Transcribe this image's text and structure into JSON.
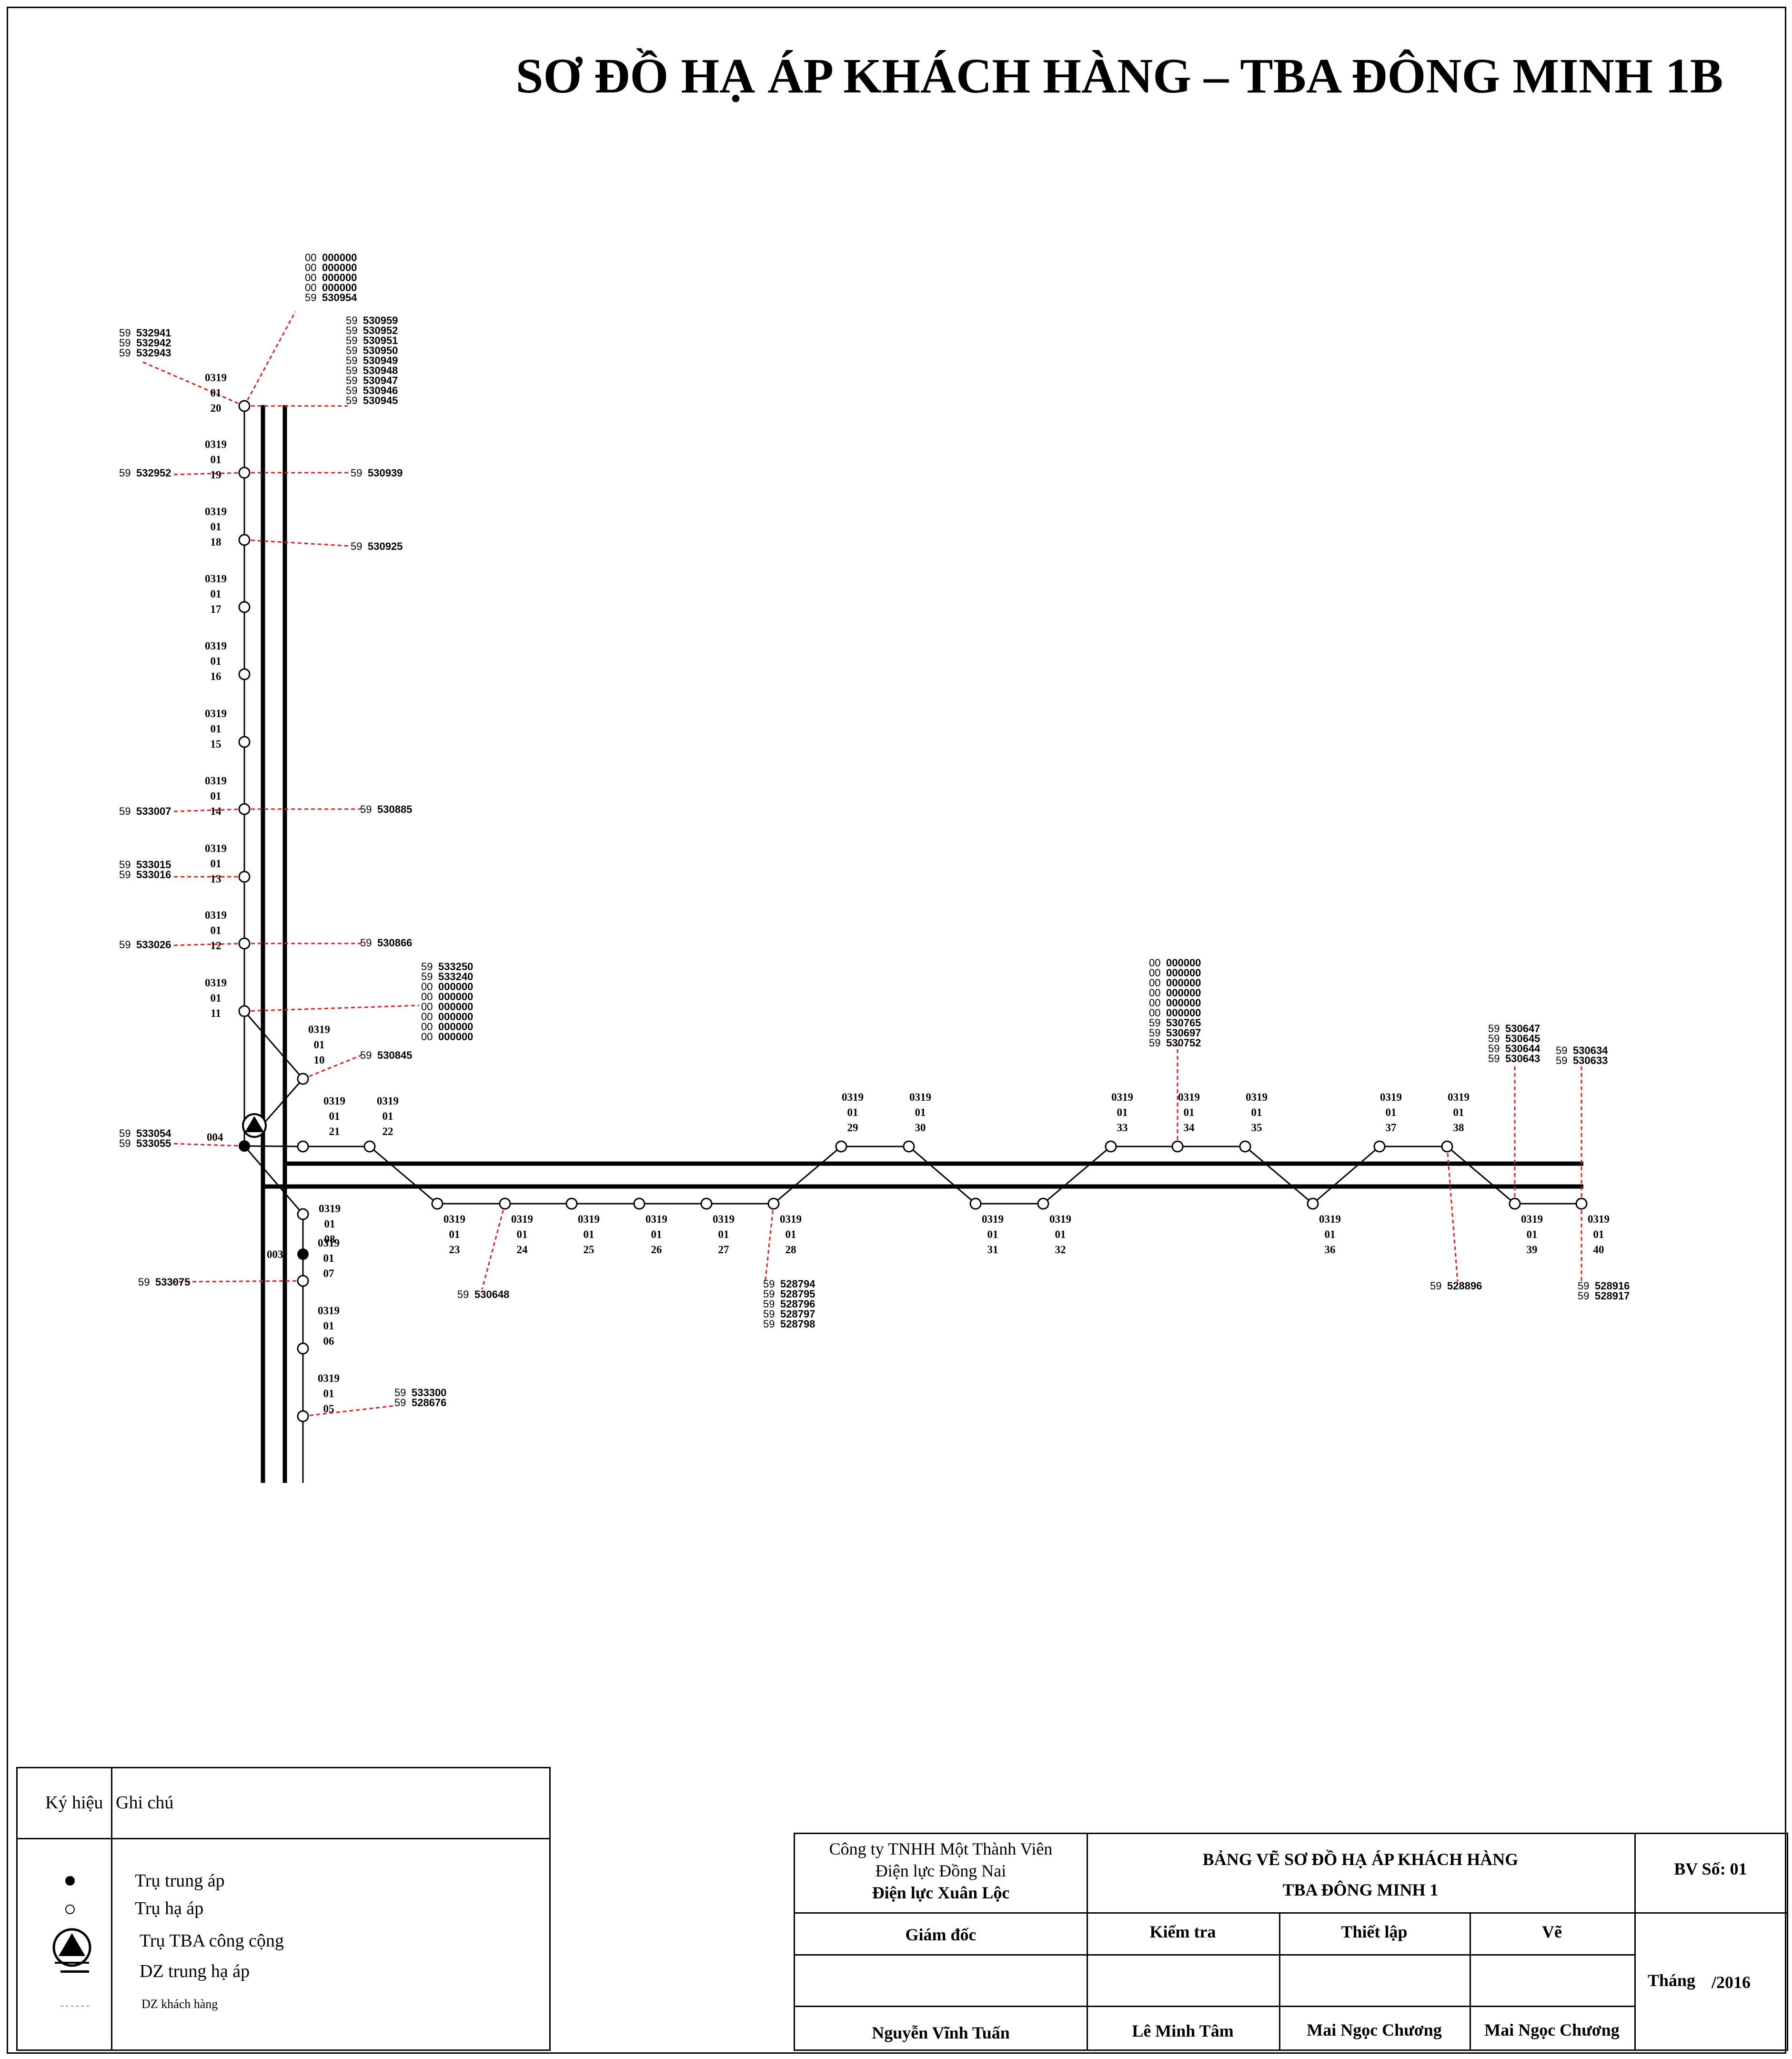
{
  "title": "SƠ ĐỒ HẠ ÁP KHÁCH HÀNG – TBA ĐÔNG MINH 1B",
  "diagram": {
    "poles": [
      {
        "top": "0319",
        "mid": "01",
        "num": "20"
      },
      {
        "top": "0319",
        "mid": "01",
        "num": "19"
      },
      {
        "top": "0319",
        "mid": "01",
        "num": "18"
      },
      {
        "top": "0319",
        "mid": "01",
        "num": "17"
      },
      {
        "top": "0319",
        "mid": "01",
        "num": "16"
      },
      {
        "top": "0319",
        "mid": "01",
        "num": "15"
      },
      {
        "top": "0319",
        "mid": "01",
        "num": "14"
      },
      {
        "top": "0319",
        "mid": "01",
        "num": "13"
      },
      {
        "top": "0319",
        "mid": "01",
        "num": "12"
      },
      {
        "top": "0319",
        "mid": "01",
        "num": "11"
      },
      {
        "top": "0319",
        "mid": "01",
        "num": "10"
      },
      {
        "top": "0319",
        "mid": "01",
        "num": "21"
      },
      {
        "top": "0319",
        "mid": "01",
        "num": "22"
      },
      {
        "top": "0319",
        "mid": "01",
        "num": "08"
      },
      {
        "top": "0319",
        "mid": "01",
        "num": "07"
      },
      {
        "top": "0319",
        "mid": "01",
        "num": "06"
      },
      {
        "top": "0319",
        "mid": "01",
        "num": "05"
      },
      {
        "top": "0319",
        "mid": "01",
        "num": "23"
      },
      {
        "top": "0319",
        "mid": "01",
        "num": "24"
      },
      {
        "top": "0319",
        "mid": "01",
        "num": "25"
      },
      {
        "top": "0319",
        "mid": "01",
        "num": "26"
      },
      {
        "top": "0319",
        "mid": "01",
        "num": "27"
      },
      {
        "top": "0319",
        "mid": "01",
        "num": "28"
      },
      {
        "top": "0319",
        "mid": "01",
        "num": "29"
      },
      {
        "top": "0319",
        "mid": "01",
        "num": "30"
      },
      {
        "top": "0319",
        "mid": "01",
        "num": "31"
      },
      {
        "top": "0319",
        "mid": "01",
        "num": "32"
      },
      {
        "top": "0319",
        "mid": "01",
        "num": "33"
      },
      {
        "top": "0319",
        "mid": "01",
        "num": "34"
      },
      {
        "top": "0319",
        "mid": "01",
        "num": "35"
      },
      {
        "top": "0319",
        "mid": "01",
        "num": "36"
      },
      {
        "top": "0319",
        "mid": "01",
        "num": "37"
      },
      {
        "top": "0319",
        "mid": "01",
        "num": "38"
      },
      {
        "top": "0319",
        "mid": "01",
        "num": "39"
      },
      {
        "top": "0319",
        "mid": "01",
        "num": "40"
      }
    ],
    "mv_labels": [
      "004",
      "003"
    ],
    "customers": [
      {
        "pole": "20",
        "side": "top",
        "ids": [
          [
            "00",
            "000000"
          ],
          [
            "00",
            "000000"
          ],
          [
            "00",
            "000000"
          ],
          [
            "00",
            "000000"
          ],
          [
            "59",
            "530954"
          ]
        ]
      },
      {
        "pole": "20",
        "side": "left",
        "ids": [
          [
            "59",
            "532941"
          ],
          [
            "59",
            "532942"
          ],
          [
            "59",
            "532943"
          ]
        ]
      },
      {
        "pole": "20",
        "side": "right",
        "ids": [
          [
            "59",
            "530959"
          ],
          [
            "59",
            "530952"
          ],
          [
            "59",
            "530951"
          ],
          [
            "59",
            "530950"
          ],
          [
            "59",
            "530949"
          ],
          [
            "59",
            "530948"
          ],
          [
            "59",
            "530947"
          ],
          [
            "59",
            "530946"
          ],
          [
            "59",
            "530945"
          ]
        ]
      },
      {
        "pole": "19",
        "side": "left",
        "ids": [
          [
            "59",
            "532952"
          ]
        ]
      },
      {
        "pole": "19",
        "side": "right",
        "ids": [
          [
            "59",
            "530939"
          ]
        ]
      },
      {
        "pole": "18",
        "side": "right",
        "ids": [
          [
            "59",
            "530925"
          ]
        ]
      },
      {
        "pole": "14",
        "side": "left",
        "ids": [
          [
            "59",
            "533007"
          ]
        ]
      },
      {
        "pole": "14",
        "side": "right",
        "ids": [
          [
            "59",
            "530885"
          ]
        ]
      },
      {
        "pole": "13",
        "side": "left",
        "ids": [
          [
            "59",
            "533015"
          ],
          [
            "59",
            "533016"
          ]
        ]
      },
      {
        "pole": "12",
        "side": "left",
        "ids": [
          [
            "59",
            "533026"
          ]
        ]
      },
      {
        "pole": "12",
        "side": "right",
        "ids": [
          [
            "59",
            "530866"
          ]
        ]
      },
      {
        "pole": "11",
        "side": "right",
        "ids": [
          [
            "59",
            "533250"
          ],
          [
            "59",
            "533240"
          ],
          [
            "00",
            "000000"
          ],
          [
            "00",
            "000000"
          ],
          [
            "00",
            "000000"
          ],
          [
            "00",
            "000000"
          ],
          [
            "00",
            "000000"
          ],
          [
            "00",
            "000000"
          ]
        ]
      },
      {
        "pole": "10",
        "side": "right",
        "ids": [
          [
            "59",
            "530845"
          ]
        ]
      },
      {
        "pole": "004",
        "side": "left",
        "ids": [
          [
            "59",
            "533054"
          ],
          [
            "59",
            "533055"
          ]
        ]
      },
      {
        "pole": "07",
        "side": "left",
        "ids": [
          [
            "59",
            "533075"
          ]
        ]
      },
      {
        "pole": "05",
        "side": "right",
        "ids": [
          [
            "59",
            "533300"
          ],
          [
            "59",
            "528676"
          ]
        ]
      },
      {
        "pole": "24",
        "side": "below",
        "ids": [
          [
            "59",
            "530648"
          ]
        ]
      },
      {
        "pole": "28",
        "side": "below",
        "ids": [
          [
            "59",
            "528794"
          ],
          [
            "59",
            "528795"
          ],
          [
            "59",
            "528796"
          ],
          [
            "59",
            "528797"
          ],
          [
            "59",
            "528798"
          ]
        ]
      },
      {
        "pole": "34",
        "side": "top",
        "ids": [
          [
            "00",
            "000000"
          ],
          [
            "00",
            "000000"
          ],
          [
            "00",
            "000000"
          ],
          [
            "00",
            "000000"
          ],
          [
            "00",
            "000000"
          ],
          [
            "00",
            "000000"
          ],
          [
            "59",
            "530765"
          ],
          [
            "59",
            "530697"
          ],
          [
            "59",
            "530752"
          ]
        ]
      },
      {
        "pole": "39",
        "side": "top",
        "ids": [
          [
            "59",
            "530647"
          ],
          [
            "59",
            "530645"
          ],
          [
            "59",
            "530644"
          ],
          [
            "59",
            "530643"
          ]
        ]
      },
      {
        "pole": "40",
        "side": "top",
        "ids": [
          [
            "59",
            "530634"
          ],
          [
            "59",
            "530633"
          ]
        ]
      },
      {
        "pole": "38",
        "side": "below",
        "ids": [
          [
            "59",
            "528896"
          ]
        ]
      },
      {
        "pole": "40",
        "side": "below",
        "ids": [
          [
            "59",
            "528916"
          ],
          [
            "59",
            "528917"
          ]
        ]
      }
    ]
  },
  "legend": {
    "header_symbol": "Ký hiệu",
    "header_note": "Ghi chú",
    "items": [
      "Trụ trung áp",
      "Trụ hạ áp",
      "Trụ TBA công cộng",
      "DZ trung hạ áp",
      "DZ khách hàng"
    ]
  },
  "title_block": {
    "company_line1": "Công ty TNHH Một Thành Viên",
    "company_line2": "Điện lực Đồng Nai",
    "company_line3": "Điện lực Xuân Lộc",
    "drawing_title1": "BẢNG VẼ SƠ ĐỒ HẠ ÁP KHÁCH HÀNG",
    "drawing_title2": "TBA ĐÔNG MINH 1",
    "sheet_no": "BV Số: 01",
    "role_director": "Giám đốc",
    "role_check": "Kiểm tra",
    "role_setup": "Thiết lập",
    "role_draw": "Vẽ",
    "month_label": "Tháng",
    "year": "/2016",
    "name_director": "Nguyễn Vĩnh Tuấn",
    "name_check": "Lê Minh Tâm",
    "name_setup": "Mai Ngọc Chương",
    "name_draw": "Mai Ngọc Chương"
  }
}
